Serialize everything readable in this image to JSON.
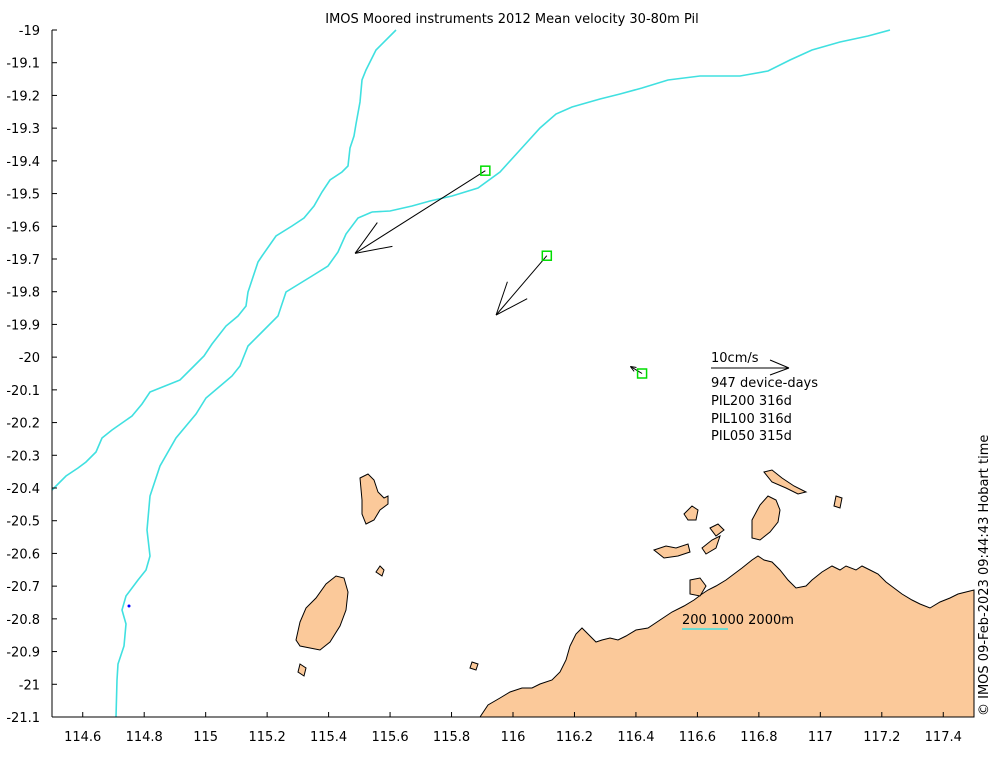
{
  "title": "IMOS Moored instruments 2012 Mean velocity 30-80m Pil",
  "timestamp": "© IMOS 09-Feb-2023 09:44:43 Hobart time",
  "axes": {
    "x_ticks": [
      "114.6",
      "114.8",
      "115",
      "115.2",
      "115.4",
      "115.6",
      "115.8",
      "116",
      "116.2",
      "116.4",
      "116.6",
      "116.8",
      "117",
      "117.2",
      "117.4"
    ],
    "y_ticks": [
      "-19",
      "-19.1",
      "-19.2",
      "-19.3",
      "-19.4",
      "-19.5",
      "-19.6",
      "-19.7",
      "-19.8",
      "-19.9",
      "-20",
      "-20.1",
      "-20.2",
      "-20.3",
      "-20.4",
      "-20.5",
      "-20.6",
      "-20.7",
      "-20.8",
      "-20.9",
      "-21",
      "-21.1"
    ],
    "xlim": [
      114.5,
      117.5
    ],
    "ylim": [
      -21.1,
      -19.0
    ]
  },
  "legend": {
    "scale_label": "10cm/s",
    "device_days": "947 device-days",
    "stations": [
      "PIL200 316d",
      "PIL100 316d",
      "PIL050 315d"
    ],
    "bathymetry_label": "200 1000 2000m"
  },
  "colors": {
    "land": "#fbc99a",
    "isobath": "#40e0e0",
    "mooring": "#00dd00",
    "arrow": "#000000"
  },
  "chart_data": {
    "type": "scatter",
    "moorings": [
      {
        "lon": 115.91,
        "lat": -19.43,
        "u_cms": -16.7,
        "v_cms": -10.6
      },
      {
        "lon": 116.11,
        "lat": -19.69,
        "u_cms": -6.5,
        "v_cms": -7.6
      },
      {
        "lon": 116.42,
        "lat": -20.05,
        "u_cms": -1.5,
        "v_cms": 0.9
      }
    ],
    "xlim": [
      114.5,
      117.5
    ],
    "ylim": [
      -21.1,
      -19.0
    ]
  }
}
